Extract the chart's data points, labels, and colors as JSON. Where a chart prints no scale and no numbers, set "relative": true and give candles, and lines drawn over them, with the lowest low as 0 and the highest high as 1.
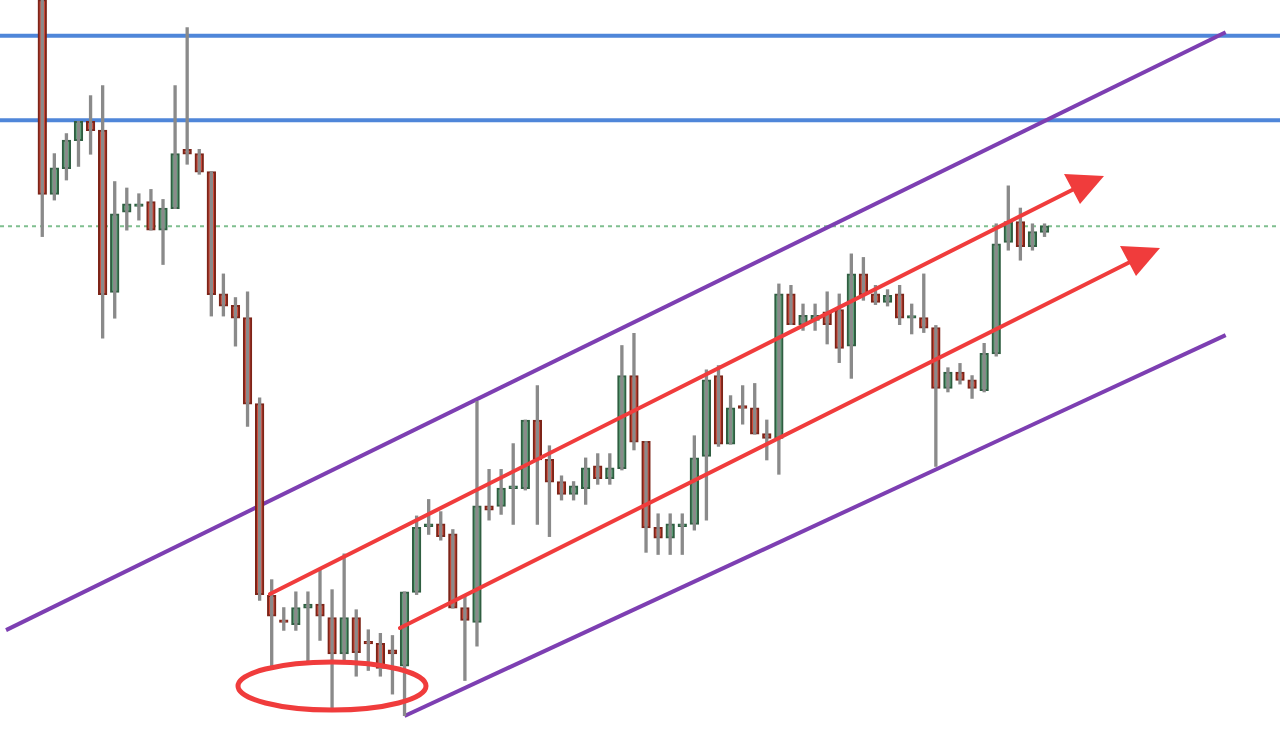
{
  "chart_data": {
    "type": "candlestick",
    "relative": true,
    "categories": [
      null,
      null,
      null,
      null,
      null,
      null,
      null,
      null,
      null,
      null,
      null,
      null,
      null,
      null,
      null,
      null,
      null,
      null,
      null,
      null,
      null,
      null,
      null,
      null,
      null,
      null,
      null,
      null,
      null,
      null,
      null,
      null,
      null,
      null,
      null,
      null,
      null,
      null,
      null,
      null,
      null,
      null,
      null,
      null,
      null,
      null,
      null,
      null,
      null,
      null,
      null,
      null,
      null,
      null,
      null,
      null,
      null,
      null,
      null,
      null,
      null,
      null,
      null,
      null,
      null,
      null,
      null,
      null,
      null,
      null,
      null,
      null,
      null,
      null,
      null,
      null,
      null,
      null,
      null,
      null,
      null,
      null,
      null,
      null,
      null,
      null,
      null,
      null,
      null,
      null,
      null,
      null,
      null,
      null,
      null,
      null,
      null,
      null,
      null,
      null,
      null,
      null,
      null,
      null,
      null,
      null
    ],
    "ohlc": [
      null,
      null,
      null,
      [
        1,
        1,
        0.67,
        0.729
      ],
      [
        0.729,
        0.785,
        0.721,
        0.765
      ],
      [
        0.765,
        0.813,
        0.749,
        0.804
      ],
      [
        0.804,
        0.83,
        0.768,
        0.83
      ],
      [
        0.83,
        0.866,
        0.785,
        0.818
      ],
      [
        0.818,
        0.88,
        0.528,
        0.589
      ],
      [
        0.592,
        0.746,
        0.556,
        0.701
      ],
      [
        0.704,
        0.737,
        0.679,
        0.715
      ],
      [
        0.712,
        0.729,
        0.693,
        0.715
      ],
      [
        0.718,
        0.735,
        0.679,
        0.679
      ],
      [
        0.679,
        0.721,
        0.631,
        0.709
      ],
      [
        0.709,
        0.88,
        0.709,
        0.785
      ],
      [
        0.791,
        0.961,
        0.771,
        0.785
      ],
      [
        0.785,
        0.791,
        0.757,
        0.76
      ],
      [
        0.76,
        0.76,
        0.559,
        0.589
      ],
      [
        0.589,
        0.617,
        0.559,
        0.573
      ],
      [
        0.573,
        0.584,
        0.517,
        0.556
      ],
      [
        0.556,
        0.592,
        0.405,
        0.436
      ],
      [
        0.436,
        0.444,
        0.162,
        0.17
      ],
      [
        0.168,
        0.19,
        0.07,
        0.14
      ],
      [
        0.134,
        0.151,
        0.12,
        0.131
      ],
      [
        0.128,
        0.173,
        0.12,
        0.151
      ],
      [
        0.151,
        0.173,
        0.073,
        0.156
      ],
      [
        0.156,
        0.204,
        0.106,
        0.14
      ],
      [
        0.137,
        0.176,
        0.008,
        0.087
      ],
      [
        0.087,
        0.226,
        0.078,
        0.137
      ],
      [
        0.137,
        0.148,
        0.056,
        0.089
      ],
      [
        0.103,
        0.12,
        0.064,
        0.101
      ],
      [
        0.101,
        0.115,
        0.056,
        0.067
      ],
      [
        0.092,
        0.112,
        0.031,
        0.087
      ],
      [
        0.07,
        0.173,
        0,
        0.173
      ],
      [
        0.173,
        0.279,
        0.17,
        0.263
      ],
      [
        0.265,
        0.302,
        0.254,
        0.268
      ],
      [
        0.268,
        0.285,
        0.246,
        0.251
      ],
      [
        0.254,
        0.26,
        0.151,
        0.151
      ],
      [
        0.151,
        0.168,
        0.05,
        0.134
      ],
      [
        0.131,
        0.439,
        0.098,
        0.293
      ],
      [
        0.293,
        0.344,
        0.274,
        0.288
      ],
      [
        0.293,
        0.344,
        0.282,
        0.318
      ],
      [
        0.318,
        0.38,
        0.268,
        0.321
      ],
      [
        0.318,
        0.413,
        0.316,
        0.413
      ],
      [
        0.413,
        0.461,
        0.268,
        0.358
      ],
      [
        0.358,
        0.377,
        0.251,
        0.327
      ],
      [
        0.327,
        0.335,
        0.302,
        0.31
      ],
      [
        0.31,
        0.327,
        0.302,
        0.321
      ],
      [
        0.318,
        0.36,
        0.296,
        0.346
      ],
      [
        0.349,
        0.366,
        0.324,
        0.332
      ],
      [
        0.332,
        0.366,
        0.324,
        0.346
      ],
      [
        0.346,
        0.517,
        0.344,
        0.475
      ],
      [
        0.475,
        0.534,
        0.372,
        0.383
      ],
      [
        0.383,
        0.383,
        0.229,
        0.263
      ],
      [
        0.263,
        0.282,
        0.226,
        0.249
      ],
      [
        0.249,
        0.282,
        0.226,
        0.268
      ],
      [
        0.265,
        0.282,
        0.226,
        0.268
      ],
      [
        0.268,
        0.391,
        0.26,
        0.36
      ],
      [
        0.363,
        0.483,
        0.274,
        0.469
      ],
      [
        0.475,
        0.489,
        0.377,
        0.38
      ],
      [
        0.38,
        0.447,
        0.38,
        0.43
      ],
      [
        0.433,
        0.461,
        0.408,
        0.43
      ],
      [
        0.43,
        0.464,
        0.394,
        0.394
      ],
      [
        0.394,
        0.413,
        0.358,
        0.388
      ],
      [
        0.388,
        0.603,
        0.338,
        0.589
      ],
      [
        0.589,
        0.601,
        0.547,
        0.547
      ],
      [
        0.547,
        0.575,
        0.539,
        0.559
      ],
      [
        0.553,
        0.575,
        0.539,
        0.559
      ],
      [
        0.564,
        0.592,
        0.52,
        0.547
      ],
      [
        0.567,
        0.589,
        0.494,
        0.514
      ],
      [
        0.517,
        0.645,
        0.472,
        0.617
      ],
      [
        0.617,
        0.64,
        0.581,
        0.589
      ],
      [
        0.589,
        0.601,
        0.575,
        0.578
      ],
      [
        0.578,
        0.595,
        0.573,
        0.587
      ],
      [
        0.589,
        0.601,
        0.547,
        0.556
      ],
      [
        0.556,
        0.575,
        0.534,
        0.556
      ],
      [
        0.556,
        0.617,
        0.536,
        0.542
      ],
      [
        0.542,
        0.545,
        0.349,
        0.458
      ],
      [
        0.458,
        0.486,
        0.453,
        0.48
      ],
      [
        0.48,
        0.492,
        0.464,
        0.469
      ],
      [
        0.469,
        0.475,
        0.444,
        0.458
      ],
      [
        0.455,
        0.52,
        0.453,
        0.506
      ],
      [
        0.506,
        0.687,
        0.503,
        0.659
      ],
      [
        0.662,
        0.74,
        0.651,
        0.69
      ],
      [
        0.69,
        0.709,
        0.637,
        0.656
      ],
      [
        0.656,
        0.687,
        0.651,
        0.676
      ],
      [
        0.676,
        0.687,
        0.67,
        0.684
      ],
      null,
      null,
      null,
      null,
      null,
      null,
      null,
      null,
      null,
      null,
      null,
      null,
      null,
      null,
      null,
      null,
      null,
      null,
      null
    ],
    "series": [
      {
        "type": "line",
        "color": "#7d3fb2",
        "values": [
          0.12,
          null,
          null,
          null,
          null,
          null,
          null,
          null,
          null,
          null,
          null,
          null,
          null,
          null,
          null,
          null,
          null,
          null,
          null,
          null,
          null,
          null,
          null,
          null,
          null,
          null,
          null,
          null,
          null,
          null,
          null,
          null,
          null,
          null,
          null,
          null,
          null,
          null,
          null,
          null,
          null,
          null,
          null,
          null,
          null,
          null,
          null,
          null,
          null,
          null,
          null,
          null,
          null,
          null,
          null,
          null,
          null,
          null,
          null,
          null,
          null,
          null,
          null,
          null,
          null,
          null,
          null,
          null,
          null,
          null,
          null,
          null,
          null,
          null,
          null,
          null,
          null,
          null,
          null,
          null,
          null,
          null,
          null,
          null,
          null,
          null,
          null,
          null,
          null,
          null,
          null,
          null,
          null,
          null,
          null,
          null,
          null,
          null,
          null,
          null,
          null,
          0.955,
          null,
          null,
          null,
          null
        ]
      },
      {
        "type": "line",
        "color": "#7d3fb2",
        "values": [
          null,
          null,
          null,
          null,
          null,
          null,
          null,
          null,
          null,
          null,
          null,
          null,
          null,
          null,
          null,
          null,
          null,
          null,
          null,
          null,
          null,
          null,
          null,
          null,
          null,
          null,
          null,
          null,
          null,
          null,
          null,
          null,
          null,
          0,
          null,
          null,
          null,
          null,
          null,
          null,
          null,
          null,
          null,
          null,
          null,
          null,
          null,
          null,
          null,
          null,
          null,
          null,
          null,
          null,
          null,
          null,
          null,
          null,
          null,
          null,
          null,
          null,
          null,
          null,
          null,
          null,
          null,
          null,
          null,
          null,
          null,
          null,
          null,
          null,
          null,
          null,
          null,
          null,
          null,
          null,
          null,
          null,
          null,
          null,
          null,
          null,
          null,
          null,
          null,
          null,
          null,
          null,
          null,
          null,
          null,
          null,
          null,
          null,
          null,
          null,
          null,
          0.532,
          null,
          null,
          null,
          null
        ]
      }
    ],
    "ref_lines": [
      {
        "axis": "y",
        "value": 0.95,
        "color": "#4f86d9"
      },
      {
        "axis": "y",
        "value": 0.832,
        "color": "#4f86d9"
      },
      {
        "axis": "y",
        "value": 0.684,
        "color": "#7fbf8f",
        "line_style": "dotted"
      }
    ]
  }
}
